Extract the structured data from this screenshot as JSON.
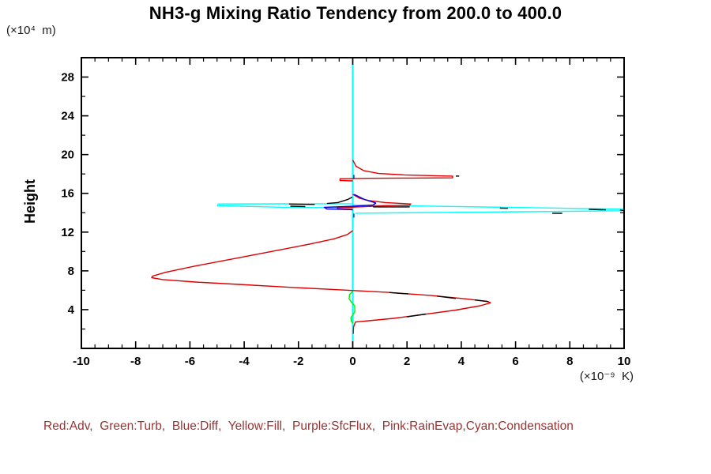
{
  "title": "NH3-g Mixing Ratio Tendency from 200.0 to 400.0",
  "y_unit_label": "(×10⁴  m)",
  "x_unit_label": "(×10⁻⁹  K)",
  "y_axis_label": "Height",
  "legend_text": "Red:Adv,  Green:Turb,  Blue:Diff,  Yellow:Fill,  Purple:SfcFlux,  Pink:RainEvap,Cyan:Condensation",
  "legend_color": "#993333",
  "chart_data": {
    "type": "line",
    "title": "NH3-g Mixing Ratio Tendency from 200.0 to 400.0",
    "xlabel": "(×10⁻⁹ K)",
    "ylabel": "Height (×10⁴ m)",
    "xlim": [
      -10,
      10
    ],
    "ylim": [
      0,
      30
    ],
    "x_ticks": [
      -10,
      -8,
      -6,
      -4,
      -2,
      0,
      2,
      4,
      6,
      8,
      10
    ],
    "x_minor_step": 0.5,
    "y_ticks": [
      4,
      8,
      12,
      16,
      20,
      24,
      28
    ],
    "y_minor_step": 2,
    "grid": false,
    "legend_position": "bottom",
    "series": [
      {
        "name": "Fill",
        "color": "#ffff00",
        "segments": [
          [
            [
              0,
              30
            ],
            [
              0,
              0
            ]
          ]
        ]
      },
      {
        "name": "SfcFlux",
        "color": "#aa00ff",
        "segments": [
          [
            [
              0,
              30
            ],
            [
              0,
              0
            ]
          ]
        ]
      },
      {
        "name": "RainEvap",
        "color": "#ff88cc",
        "segments": [
          [
            [
              0,
              30
            ],
            [
              0,
              0
            ]
          ]
        ]
      },
      {
        "name": "Condensation",
        "color": "#00ffff",
        "segments": [
          [
            [
              0,
              30
            ],
            [
              0,
              0
            ]
          ],
          [
            [
              0,
              14.93
            ],
            [
              -2.5,
              14.92
            ],
            [
              -4.96,
              14.9
            ],
            [
              -4.98,
              14.73
            ],
            [
              -2.5,
              14.56
            ],
            [
              0,
              14.5
            ]
          ],
          [
            [
              0,
              14.79
            ],
            [
              2.14,
              14.71
            ],
            [
              9.99,
              14.37
            ],
            [
              9.99,
              14.2
            ],
            [
              5,
              14.07
            ],
            [
              0.1,
              13.95
            ]
          ]
        ]
      },
      {
        "name": "Adv",
        "color": "#dd0000",
        "segments": [
          [
            [
              0,
              19.45
            ],
            [
              0.12,
              18.8
            ],
            [
              0.4,
              18.35
            ],
            [
              0.95,
              18.05
            ],
            [
              1.9,
              17.9
            ],
            [
              3.0,
              17.82
            ],
            [
              3.68,
              17.78
            ],
            [
              3.68,
              17.6
            ],
            [
              2.2,
              17.58
            ],
            [
              0.5,
              17.55
            ],
            [
              -0.47,
              17.5
            ],
            [
              -0.47,
              17.32
            ],
            [
              0,
              17.28
            ]
          ],
          [
            [
              0,
              15.9
            ],
            [
              0.25,
              15.5
            ],
            [
              0.6,
              15.25
            ],
            [
              1.2,
              15.05
            ],
            [
              1.8,
              14.95
            ],
            [
              2.14,
              14.9
            ],
            [
              2.1,
              14.78
            ],
            [
              1.2,
              14.72
            ],
            [
              0.2,
              14.6
            ],
            [
              -0.57,
              14.5
            ],
            [
              -0.55,
              14.4
            ],
            [
              0,
              14.35
            ]
          ],
          [
            [
              0,
              12.15
            ],
            [
              -0.2,
              11.75
            ],
            [
              -0.7,
              11.3
            ],
            [
              -1.6,
              10.75
            ],
            [
              -2.8,
              10.1
            ],
            [
              -4.3,
              9.3
            ],
            [
              -5.8,
              8.5
            ],
            [
              -6.9,
              7.85
            ],
            [
              -7.38,
              7.45
            ],
            [
              -7.41,
              7.3
            ],
            [
              -7.0,
              7.1
            ],
            [
              -5.8,
              6.85
            ],
            [
              -4.2,
              6.6
            ],
            [
              -2.3,
              6.3
            ],
            [
              -0.3,
              6.02
            ],
            [
              1.3,
              5.78
            ],
            [
              2.9,
              5.45
            ],
            [
              4.2,
              5.1
            ],
            [
              4.95,
              4.85
            ],
            [
              5.08,
              4.7
            ],
            [
              4.7,
              4.4
            ],
            [
              3.8,
              3.95
            ],
            [
              2.6,
              3.5
            ],
            [
              1.5,
              3.1
            ],
            [
              0.6,
              2.85
            ],
            [
              0.1,
              2.72
            ],
            [
              0.03,
              2.2
            ],
            [
              0.02,
              1.5
            ]
          ]
        ]
      },
      {
        "name": "Turb",
        "color": "#00ee00",
        "segments": [
          [
            [
              0,
              5.9
            ],
            [
              -0.12,
              5.55
            ],
            [
              -0.13,
              5.1
            ],
            [
              -0.04,
              4.75
            ],
            [
              0.07,
              4.4
            ],
            [
              0.08,
              3.8
            ],
            [
              0,
              3.45
            ],
            [
              -0.07,
              3.15
            ],
            [
              -0.05,
              2.8
            ],
            [
              0,
              2.6
            ]
          ]
        ]
      },
      {
        "name": "Diff",
        "color": "#0000ee",
        "segments": [
          [
            [
              0.04,
              17.9
            ],
            [
              0.04,
              17.5
            ]
          ],
          [
            [
              0.05,
              15.9
            ],
            [
              0.45,
              15.35
            ],
            [
              0.85,
              15.0
            ],
            [
              0.75,
              14.8
            ],
            [
              0.1,
              14.68
            ],
            [
              -1.05,
              14.55
            ],
            [
              -0.95,
              14.38
            ],
            [
              -0.2,
              14.33
            ],
            [
              0,
              14.3
            ]
          ],
          [
            [
              0.04,
              13.9
            ],
            [
              0.04,
              13.5
            ]
          ]
        ]
      },
      {
        "name": "unlabeled-black-overlay",
        "color": "#000000",
        "segments": [
          [
            [
              -2.35,
              14.89
            ],
            [
              -1.4,
              14.85
            ]
          ],
          [
            [
              -2.3,
              14.67
            ],
            [
              -1.75,
              14.63
            ]
          ],
          [
            [
              -0.95,
              14.95
            ],
            [
              -0.55,
              15.05
            ],
            [
              -0.2,
              15.35
            ],
            [
              -0.02,
              15.6
            ]
          ],
          [
            [
              0.75,
              14.6
            ],
            [
              2.1,
              14.6
            ]
          ],
          [
            [
              3.8,
              17.78
            ],
            [
              3.92,
              17.78
            ]
          ],
          [
            [
              1.35,
              5.76
            ],
            [
              2.05,
              5.62
            ]
          ],
          [
            [
              3.1,
              5.4
            ],
            [
              3.8,
              5.15
            ]
          ],
          [
            [
              4.5,
              5.0
            ],
            [
              5.0,
              4.83
            ]
          ],
          [
            [
              2.7,
              3.55
            ],
            [
              2.0,
              3.25
            ]
          ],
          [
            [
              5.42,
              14.47
            ],
            [
              5.72,
              14.45
            ]
          ],
          [
            [
              8.7,
              14.35
            ],
            [
              9.33,
              14.3
            ]
          ],
          [
            [
              7.35,
              13.95
            ],
            [
              7.72,
              13.94
            ]
          ],
          [
            [
              9.85,
              14.28
            ],
            [
              10,
              14.22
            ]
          ]
        ]
      }
    ]
  }
}
